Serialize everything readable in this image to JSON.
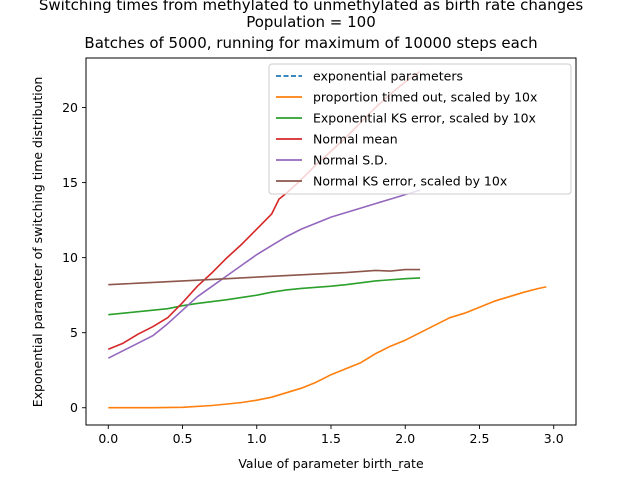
{
  "chart_data": {
    "type": "line",
    "title_lines": [
      "Switching times from methylated to unmethylated as birth rate changes",
      "Population = 100",
      "Batches of 5000, running for maximum of 10000 steps each"
    ],
    "xlabel": "Value of parameter birth_rate",
    "ylabel": "Exponential parameter of switching time distribution",
    "xlim": [
      -0.15,
      3.15
    ],
    "ylim": [
      -1.15,
      23.3
    ],
    "xticks": [
      0.0,
      0.5,
      1.0,
      1.5,
      2.0,
      2.5,
      3.0
    ],
    "xtick_labels": [
      "0.0",
      "0.5",
      "1.0",
      "1.5",
      "2.0",
      "2.5",
      "3.0"
    ],
    "yticks": [
      0,
      5,
      10,
      15,
      20
    ],
    "ytick_labels": [
      "0",
      "5",
      "10",
      "15",
      "20"
    ],
    "grid": false,
    "legend_position": "top-right",
    "series": [
      {
        "name": "exponential parameters",
        "color": "#1f77b4",
        "dash": "dashed",
        "points": []
      },
      {
        "name": "proportion timed out, scaled by 10x",
        "color": "#ff7f0e",
        "dash": "solid",
        "points": [
          [
            0.0,
            0.0
          ],
          [
            0.3,
            0.0
          ],
          [
            0.5,
            0.03
          ],
          [
            0.7,
            0.15
          ],
          [
            0.8,
            0.25
          ],
          [
            0.9,
            0.35
          ],
          [
            1.0,
            0.5
          ],
          [
            1.1,
            0.7
          ],
          [
            1.2,
            1.0
          ],
          [
            1.3,
            1.3
          ],
          [
            1.4,
            1.7
          ],
          [
            1.5,
            2.2
          ],
          [
            1.6,
            2.6
          ],
          [
            1.7,
            3.0
          ],
          [
            1.8,
            3.6
          ],
          [
            1.9,
            4.1
          ],
          [
            2.0,
            4.5
          ],
          [
            2.1,
            5.0
          ],
          [
            2.2,
            5.5
          ],
          [
            2.3,
            6.0
          ],
          [
            2.4,
            6.3
          ],
          [
            2.5,
            6.7
          ],
          [
            2.6,
            7.1
          ],
          [
            2.7,
            7.4
          ],
          [
            2.8,
            7.7
          ],
          [
            2.9,
            7.95
          ],
          [
            2.95,
            8.05
          ]
        ]
      },
      {
        "name": "Exponential KS error, scaled by 10x",
        "color": "#2ca02c",
        "dash": "solid",
        "points": [
          [
            0.0,
            6.2
          ],
          [
            0.2,
            6.4
          ],
          [
            0.4,
            6.6
          ],
          [
            0.5,
            6.8
          ],
          [
            0.6,
            6.95
          ],
          [
            0.8,
            7.2
          ],
          [
            1.0,
            7.5
          ],
          [
            1.1,
            7.7
          ],
          [
            1.2,
            7.85
          ],
          [
            1.3,
            7.95
          ],
          [
            1.5,
            8.1
          ],
          [
            1.6,
            8.2
          ],
          [
            1.8,
            8.45
          ],
          [
            2.0,
            8.6
          ],
          [
            2.1,
            8.65
          ]
        ]
      },
      {
        "name": "Normal mean",
        "color": "#d62728",
        "dash": "solid",
        "points": [
          [
            0.0,
            3.9
          ],
          [
            0.1,
            4.3
          ],
          [
            0.2,
            4.9
          ],
          [
            0.3,
            5.4
          ],
          [
            0.4,
            6.0
          ],
          [
            0.5,
            7.0
          ],
          [
            0.6,
            8.1
          ],
          [
            0.7,
            9.0
          ],
          [
            0.8,
            10.0
          ],
          [
            0.9,
            10.9
          ],
          [
            1.0,
            11.9
          ],
          [
            1.1,
            12.9
          ],
          [
            1.15,
            13.9
          ],
          [
            1.2,
            14.3
          ],
          [
            1.3,
            15.2
          ],
          [
            1.4,
            16.2
          ],
          [
            1.5,
            17.1
          ],
          [
            1.6,
            18.0
          ],
          [
            1.7,
            19.0
          ],
          [
            1.8,
            20.0
          ],
          [
            1.9,
            20.9
          ],
          [
            2.0,
            21.7
          ],
          [
            2.1,
            22.4
          ]
        ]
      },
      {
        "name": "Normal S.D.",
        "color": "#9467bd",
        "dash": "solid",
        "points": [
          [
            0.0,
            3.3
          ],
          [
            0.1,
            3.8
          ],
          [
            0.2,
            4.3
          ],
          [
            0.3,
            4.8
          ],
          [
            0.4,
            5.6
          ],
          [
            0.5,
            6.5
          ],
          [
            0.6,
            7.4
          ],
          [
            0.7,
            8.1
          ],
          [
            0.8,
            8.8
          ],
          [
            0.9,
            9.5
          ],
          [
            1.0,
            10.2
          ],
          [
            1.1,
            10.8
          ],
          [
            1.2,
            11.4
          ],
          [
            1.3,
            11.9
          ],
          [
            1.4,
            12.3
          ],
          [
            1.5,
            12.7
          ],
          [
            1.6,
            13.0
          ],
          [
            1.7,
            13.3
          ],
          [
            1.8,
            13.6
          ],
          [
            1.9,
            13.9
          ],
          [
            2.0,
            14.2
          ],
          [
            2.1,
            14.5
          ]
        ]
      },
      {
        "name": "Normal KS error, scaled by 10x",
        "color": "#8c564b",
        "dash": "solid",
        "points": [
          [
            0.0,
            8.2
          ],
          [
            0.2,
            8.3
          ],
          [
            0.4,
            8.4
          ],
          [
            0.6,
            8.5
          ],
          [
            0.8,
            8.6
          ],
          [
            1.0,
            8.7
          ],
          [
            1.2,
            8.8
          ],
          [
            1.4,
            8.9
          ],
          [
            1.6,
            9.0
          ],
          [
            1.8,
            9.15
          ],
          [
            1.9,
            9.1
          ],
          [
            2.0,
            9.2
          ],
          [
            2.1,
            9.2
          ]
        ]
      }
    ]
  }
}
